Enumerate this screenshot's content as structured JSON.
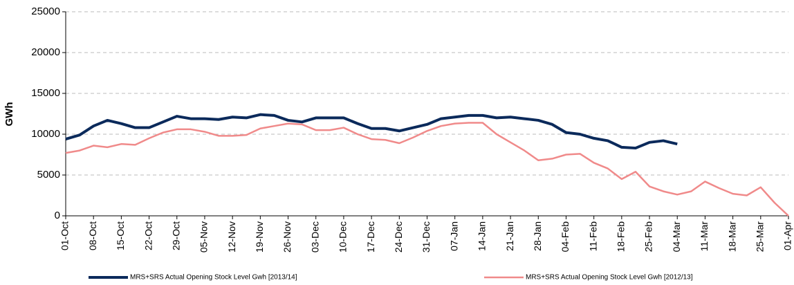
{
  "chart_data": {
    "type": "line",
    "y_label": "GWh",
    "categories": [
      "01-Oct",
      null,
      "08-Oct",
      null,
      "15-Oct",
      null,
      "22-Oct",
      null,
      "29-Oct",
      null,
      "05-Nov",
      null,
      "12-Nov",
      null,
      "19-Nov",
      null,
      "26-Nov",
      null,
      "03-Dec",
      null,
      "10-Dec",
      null,
      "17-Dec",
      null,
      "24-Dec",
      null,
      "31-Dec",
      null,
      "07-Jan",
      null,
      "14-Jan",
      null,
      "21-Jan",
      null,
      "28-Jan",
      null,
      "04-Feb",
      null,
      "11-Feb",
      null,
      "18-Feb",
      null,
      "25-Feb",
      null,
      "04-Mar",
      null,
      "11-Mar",
      null,
      "18-Mar",
      null,
      "25-Mar",
      null,
      "01-Apr"
    ],
    "series": [
      {
        "name": "MRS+SRS Actual Opening Stock Level Gwh [2013/14]",
        "color": "#0b2a5b",
        "values": [
          9400,
          9900,
          11000,
          11700,
          11300,
          10800,
          10800,
          11500,
          12200,
          11900,
          11900,
          11800,
          12100,
          12000,
          12400,
          12300,
          11700,
          11500,
          12000,
          12000,
          12000,
          11300,
          10700,
          10700,
          10400,
          10800,
          11200,
          11900,
          12100,
          12300,
          12300,
          12000,
          12100,
          11900,
          11700,
          11200,
          10200,
          10000,
          9500,
          9200,
          8400,
          8300,
          9000,
          9200,
          8800,
          null,
          null,
          null,
          null,
          null,
          null,
          null,
          null
        ]
      },
      {
        "name": "MRS+SRS Actual Opening Stock Level Gwh [2012/13]",
        "color": "#f08a8a",
        "values": [
          7700,
          8000,
          8600,
          8400,
          8800,
          8700,
          9500,
          10200,
          10600,
          10600,
          10300,
          9800,
          9800,
          9900,
          10700,
          11000,
          11300,
          11200,
          10500,
          10500,
          10800,
          10000,
          9400,
          9300,
          8900,
          9600,
          10400,
          11000,
          11300,
          11400,
          11400,
          10000,
          9000,
          8000,
          6800,
          7000,
          7500,
          7600,
          6500,
          5800,
          4500,
          5400,
          3600,
          3000,
          2600,
          3000,
          4200,
          3400,
          2700,
          2500,
          3500,
          1600,
          0
        ]
      }
    ],
    "ylim": [
      0,
      25000
    ],
    "yticks": [
      0,
      5000,
      10000,
      15000,
      20000,
      25000
    ],
    "grid": true,
    "legend": "bottom"
  }
}
